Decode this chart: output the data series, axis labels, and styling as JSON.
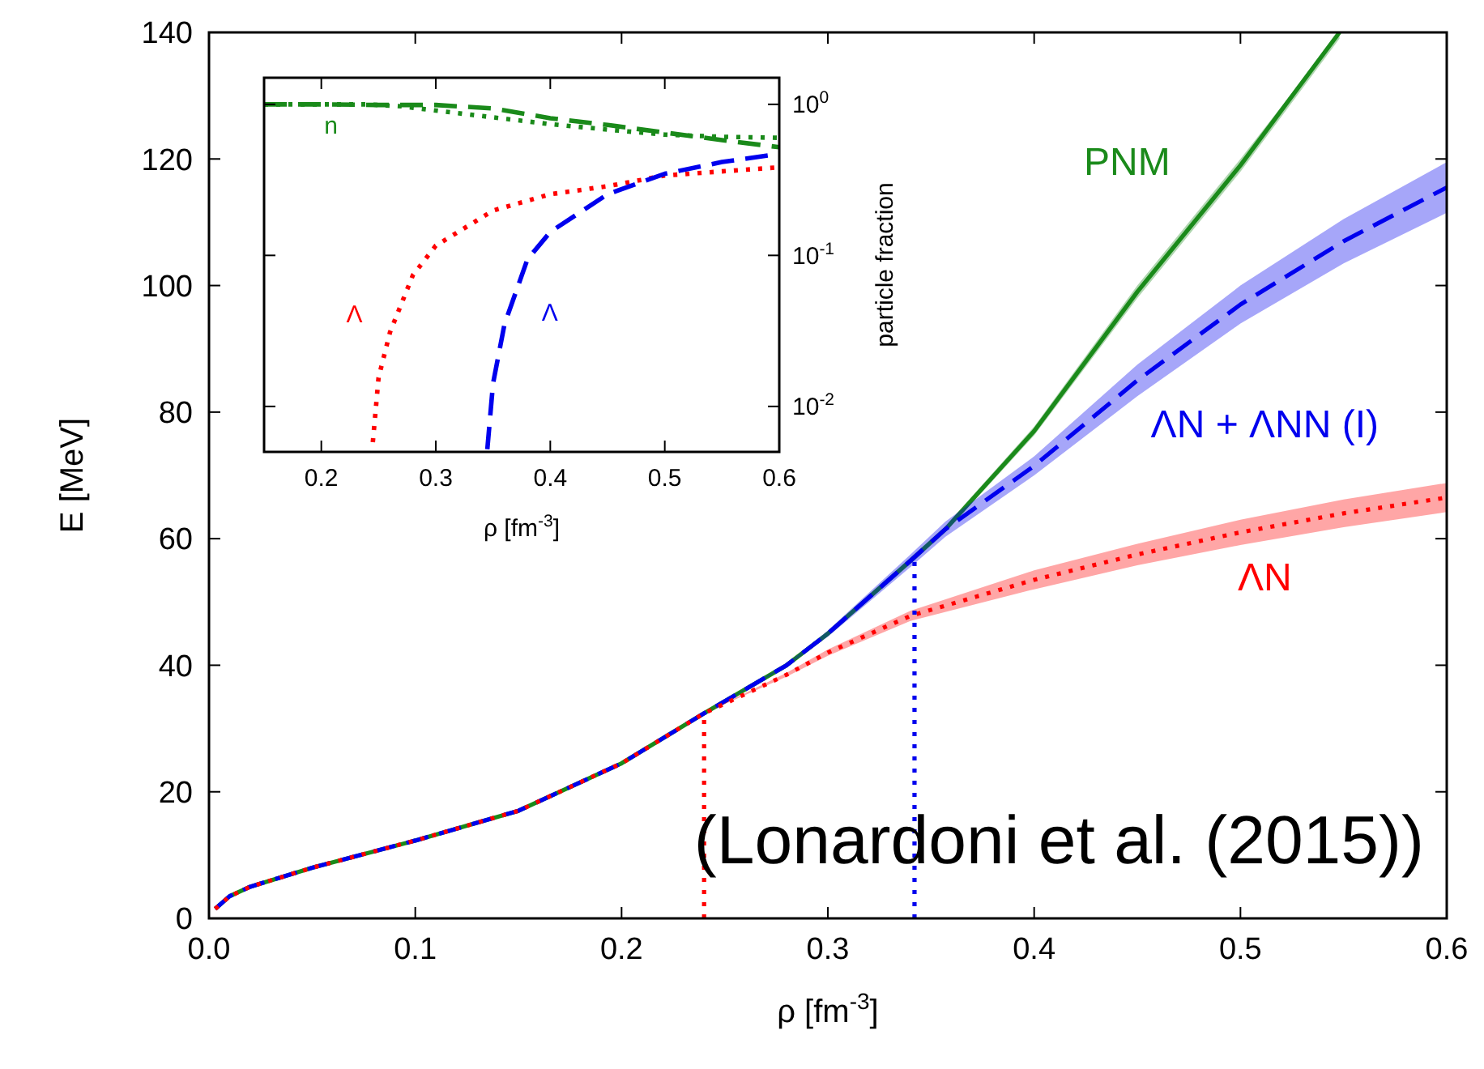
{
  "chart_data": [
    {
      "type": "line",
      "xlabel": "ρ [fm$^{-3}$]",
      "ylabel": "E [MeV]",
      "xlim": [
        0,
        0.6
      ],
      "ylim": [
        0,
        140
      ],
      "xticks": [
        {
          "value": 0,
          "label": "0.0"
        },
        0.1,
        0.2,
        0.3,
        0.4,
        0.5,
        0.6
      ],
      "yticks": [
        0,
        20,
        40,
        60,
        80,
        100,
        120,
        140
      ],
      "annotations": [
        "(Lonardoni et al. (2015))"
      ],
      "series": [
        {
          "name": "PNM",
          "color": "#1a8a1a",
          "line_style": "solid",
          "x": [
            0.003,
            0.01,
            0.02,
            0.05,
            0.1,
            0.15,
            0.2,
            0.24,
            0.28,
            0.3,
            0.34,
            0.357,
            0.4,
            0.45,
            0.5,
            0.548
          ],
          "values": [
            1.5,
            3.5,
            5,
            8,
            12.3,
            17,
            24.5,
            32.4,
            40,
            45,
            56.5,
            61.5,
            77,
            99,
            119,
            140
          ],
          "lower": [
            1.3,
            3.3,
            4.8,
            7.8,
            12.1,
            16.8,
            24.3,
            32.1,
            39.6,
            44.6,
            56,
            61,
            76.3,
            98,
            118,
            139
          ],
          "upper": [
            1.7,
            3.7,
            5.2,
            8.2,
            12.5,
            17.2,
            24.7,
            32.7,
            40.4,
            45.4,
            57,
            62,
            77.7,
            100,
            120,
            140
          ]
        },
        {
          "name": "ΛN + ΛNN (I)",
          "color": "#0000ee",
          "line_style": "dashed",
          "x": [
            0.003,
            0.01,
            0.02,
            0.05,
            0.1,
            0.15,
            0.2,
            0.24,
            0.28,
            0.3,
            0.34,
            0.357,
            0.4,
            0.45,
            0.5,
            0.55,
            0.6
          ],
          "values": [
            1.5,
            3.5,
            5,
            8,
            12.3,
            17,
            24.5,
            32.4,
            40,
            45,
            56.5,
            61.5,
            71.5,
            85,
            97,
            107,
            115.5
          ],
          "lower": [
            1.5,
            3.5,
            5,
            8,
            12.3,
            17,
            24.5,
            32.4,
            39.8,
            44.5,
            55.5,
            60.3,
            70,
            82.5,
            94,
            103.5,
            111.5
          ],
          "upper": [
            1.5,
            3.5,
            5,
            8,
            12.3,
            17,
            24.5,
            32.4,
            40.2,
            45.5,
            57.5,
            62.7,
            73,
            87.5,
            100,
            110.5,
            119.5
          ]
        },
        {
          "name": "ΛN",
          "color": "#ff0000",
          "line_style": "dotted",
          "x": [
            0.003,
            0.01,
            0.02,
            0.05,
            0.1,
            0.15,
            0.2,
            0.24,
            0.28,
            0.3,
            0.34,
            0.4,
            0.45,
            0.5,
            0.55,
            0.6
          ],
          "values": [
            1.5,
            3.5,
            5,
            8,
            12.3,
            17,
            24.5,
            32.4,
            38.5,
            42,
            47.8,
            53.5,
            57.5,
            61,
            64,
            66.5
          ],
          "lower": [
            1.5,
            3.5,
            5,
            8,
            12.3,
            17,
            24.5,
            32.4,
            38.2,
            41.5,
            47,
            52,
            55.8,
            59,
            61.8,
            64.2
          ],
          "upper": [
            1.5,
            3.5,
            5,
            8,
            12.3,
            17,
            24.5,
            32.4,
            38.8,
            42.5,
            48.6,
            55,
            59.2,
            63,
            66.2,
            68.8
          ]
        },
        {
          "color": "#ff0000",
          "line_style": "dotted",
          "x": [
            0.24,
            0.24
          ],
          "values": [
            0,
            32.4
          ]
        },
        {
          "color": "#0000ee",
          "line_style": "dotted",
          "x": [
            0.342,
            0.342
          ],
          "values": [
            0,
            56.5
          ]
        }
      ]
    },
    {
      "type": "line",
      "xlabel": "ρ [fm$^{-3}$]",
      "ylabel": "particle fraction",
      "log": "y",
      "xlim": [
        0.15,
        0.6
      ],
      "ylim": [
        0.005,
        1.5
      ],
      "xticks": [
        0.2,
        0.3,
        0.4,
        0.5,
        0.6
      ],
      "yticks": [
        {
          "value": 1,
          "label": "10$^{0}$"
        },
        {
          "value": 0.1,
          "label": "10$^{-1}$"
        },
        {
          "value": 0.01,
          "label": "10$^{-2}$"
        }
      ],
      "series": [
        {
          "name": "n",
          "color": "#1a8a1a",
          "line_style": "dashed",
          "x": [
            0.15,
            0.2,
            0.25,
            0.3,
            0.35,
            0.4,
            0.45,
            0.5,
            0.55,
            0.6
          ],
          "values": [
            1,
            1,
            0.99,
            0.99,
            0.94,
            0.81,
            0.73,
            0.65,
            0.58,
            0.52
          ]
        },
        {
          "color": "#1a8a1a",
          "line_style": "dotted",
          "x": [
            0.15,
            0.2,
            0.24,
            0.27,
            0.3,
            0.35,
            0.4,
            0.45,
            0.5,
            0.55,
            0.6
          ],
          "values": [
            1,
            1,
            1,
            0.97,
            0.91,
            0.82,
            0.74,
            0.68,
            0.63,
            0.61,
            0.6
          ]
        },
        {
          "name": "Λ",
          "color": "#ff0000",
          "line_style": "dotted",
          "x": [
            0.245,
            0.25,
            0.26,
            0.28,
            0.3,
            0.35,
            0.4,
            0.45,
            0.5,
            0.6
          ],
          "values": [
            0.0058,
            0.0155,
            0.031,
            0.074,
            0.116,
            0.198,
            0.254,
            0.287,
            0.338,
            0.383
          ]
        },
        {
          "name": "Λ",
          "color": "#0000ee",
          "line_style": "dashed",
          "x": [
            0.345,
            0.35,
            0.36,
            0.38,
            0.4,
            0.45,
            0.5,
            0.55,
            0.6
          ],
          "values": [
            0.0052,
            0.0142,
            0.035,
            0.094,
            0.143,
            0.254,
            0.347,
            0.415,
            0.47
          ]
        }
      ]
    }
  ]
}
